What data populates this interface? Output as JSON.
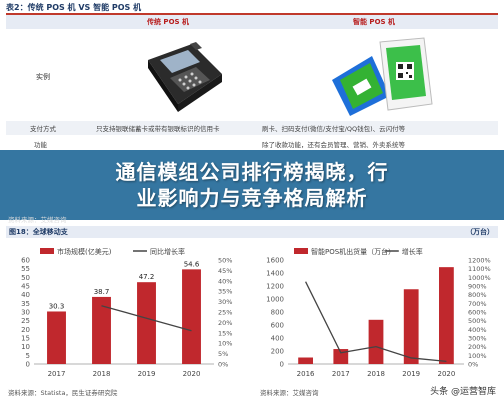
{
  "table": {
    "title": "表2：传统 POS 机 VS 智能 POS 机",
    "col_left": "",
    "col_mid": "传统 POS 机",
    "col_right": "智能 POS 机",
    "row_image_label": "实例",
    "rows": [
      {
        "label": "支付方式",
        "mid": "只支持银联储蓄卡或带有银联标识的信用卡",
        "right": "刷卡、扫码支付(微信/支付宝/QQ钱包)、云闪付等"
      },
      {
        "label": "功能",
        "mid": "",
        "right": "除了收款功能，还有会员管理、营销、外卖系统等"
      }
    ],
    "source_text": "资料来源：艾媒咨询"
  },
  "banner": {
    "line1": "通信模组公司排行榜揭晓，行",
    "line2": "业影响力与竞争格局解析"
  },
  "figure": {
    "title_left": "图18：全球移动支",
    "title_right": "（万台）"
  },
  "chart_data": [
    {
      "type": "bar",
      "title": "",
      "legend": [
        "市场规模(亿美元)",
        "同比增长率"
      ],
      "categories": [
        "2017",
        "2018",
        "2019",
        "2020"
      ],
      "series": [
        {
          "name": "市场规模(亿美元)",
          "values": [
            30.3,
            38.7,
            47.2,
            54.6
          ],
          "color": "#c0282d"
        },
        {
          "name": "同比增长率",
          "values": [
            null,
            28,
            22,
            16
          ],
          "color": "#444444"
        }
      ],
      "ylim": [
        0,
        60
      ],
      "yticks": [
        0,
        5,
        10,
        15,
        20,
        25,
        30,
        35,
        40,
        45,
        50,
        55,
        60
      ],
      "y2lim": [
        0,
        50
      ],
      "y2ticks": [
        "0%",
        "5%",
        "10%",
        "15%",
        "20%",
        "25%",
        "30%",
        "35%",
        "40%",
        "45%",
        "50%"
      ],
      "data_labels": [
        "30.3",
        "38.7",
        "47.2",
        "54.6"
      ],
      "source": "资料来源：Statista，民生证券研究院"
    },
    {
      "type": "bar",
      "title": "",
      "legend": [
        "智能POS机出货量（万台）",
        "增长率"
      ],
      "categories": [
        "2016",
        "2017",
        "2018",
        "2019",
        "2020"
      ],
      "series": [
        {
          "name": "智能POS机出货量（万台）",
          "values": [
            100,
            230,
            680,
            1150,
            1490
          ],
          "color": "#c0282d"
        },
        {
          "name": "增长率",
          "values": [
            950,
            130,
            200,
            70,
            30
          ],
          "color": "#444444"
        }
      ],
      "ylim": [
        0,
        1600
      ],
      "yticks": [
        0,
        200,
        400,
        600,
        800,
        1000,
        1200,
        1400,
        1600
      ],
      "y2lim": [
        0,
        1200
      ],
      "y2ticks": [
        "0%",
        "100%",
        "200%",
        "300%",
        "400%",
        "500%",
        "600%",
        "700%",
        "800%",
        "900%",
        "1000%",
        "1100%",
        "1200%"
      ],
      "source": "资料来源：艾媒咨询"
    }
  ],
  "watermark": "头条 @运营智库"
}
